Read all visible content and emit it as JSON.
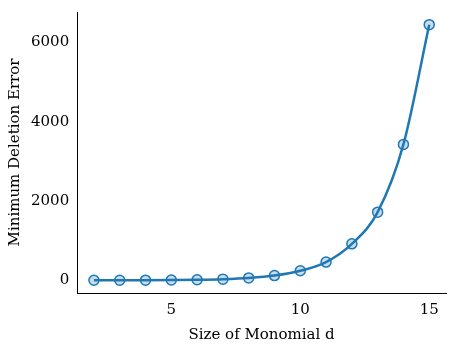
{
  "chart_data": {
    "type": "line",
    "x_label": "Size of Monomial d",
    "y_label": "Minimum Deletion Error",
    "x": [
      2,
      3,
      4,
      5,
      6,
      7,
      8,
      9,
      10,
      11,
      12,
      13,
      14,
      15
    ],
    "values": [
      1,
      2,
      4,
      8,
      15,
      30,
      60,
      120,
      240,
      460,
      920,
      1720,
      3430,
      6450
    ],
    "color": "#1f77b4",
    "marker": "circle",
    "line_style": "solid",
    "xlim": [
      1.35,
      15.65
    ],
    "xticks": [
      5,
      10,
      15
    ],
    "ylim": [
      -320,
      6770
    ],
    "yticks": [
      0,
      2000,
      4000,
      6000
    ],
    "grid": false
  }
}
